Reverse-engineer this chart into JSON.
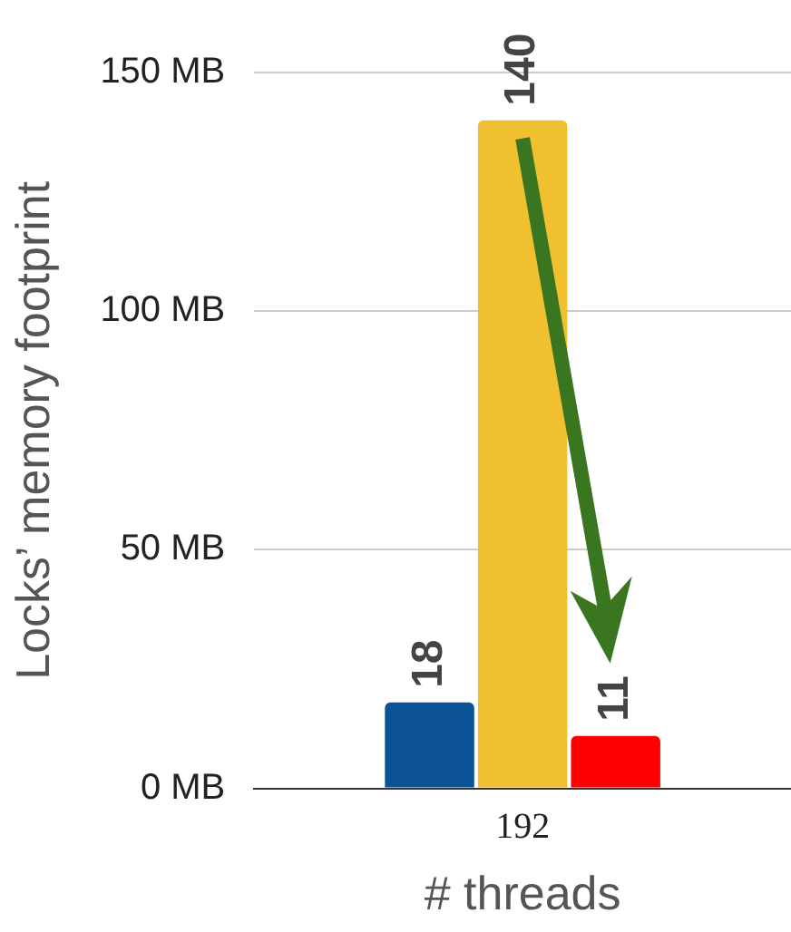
{
  "chart_data": {
    "type": "bar",
    "xlabel": "# threads",
    "ylabel": "Locks’ memory footprint",
    "categories": [
      "192"
    ],
    "series": [
      {
        "color": "#0c5297",
        "values": [
          18
        ]
      },
      {
        "color": "#f0c030",
        "values": [
          140
        ]
      },
      {
        "color": "#ff0000",
        "values": [
          11
        ]
      }
    ],
    "ylim": [
      0,
      150
    ],
    "yticks": [
      {
        "value": 0,
        "label": "0 MB"
      },
      {
        "value": 50,
        "label": "50 MB"
      },
      {
        "value": 100,
        "label": "100 MB"
      },
      {
        "value": 150,
        "label": "150 MB"
      }
    ],
    "grid": "y",
    "legend": false,
    "data_labels": true
  }
}
